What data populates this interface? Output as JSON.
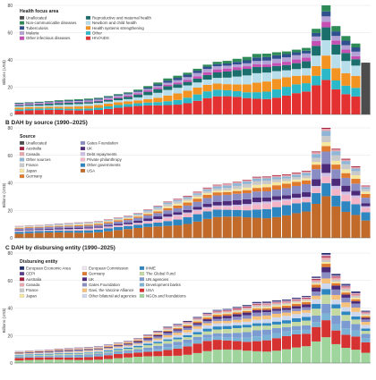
{
  "chart_data": [
    {
      "type": "bar",
      "stacked": true,
      "title": "",
      "legend_title": "Health focus area",
      "ylabel": "Billions (US$)",
      "ylim": [
        0,
        80
      ],
      "yticks": [
        0,
        20,
        40,
        60,
        80
      ],
      "series": [
        {
          "name": "Unallocated",
          "color": "#4d4d4d"
        },
        {
          "name": "Non-communicable diseases",
          "color": "#2e8b57"
        },
        {
          "name": "Tuberculosis",
          "color": "#2f4f8f"
        },
        {
          "name": "Malaria",
          "color": "#b3a2d6"
        },
        {
          "name": "Other infectious diseases",
          "color": "#c64fb4"
        },
        {
          "name": "Reproductive and maternal health",
          "color": "#1a6e6b"
        },
        {
          "name": "Newborn and child health",
          "color": "#b8ddeb"
        },
        {
          "name": "Health systems strengthening",
          "color": "#f39321"
        },
        {
          "name": "Other",
          "color": "#2bb9c9"
        },
        {
          "name": "HIV/AIDS",
          "color": "#e33030"
        }
      ],
      "totals": [
        8.6,
        9,
        9.3,
        9.8,
        10.4,
        10.8,
        11.2,
        11.6,
        12.2,
        13.5,
        14.9,
        16.2,
        18.2,
        20.8,
        23.4,
        26.4,
        28.4,
        30.6,
        33.5,
        36.5,
        38.6,
        39.3,
        40.8,
        42.2,
        44.4,
        44.6,
        45.6,
        46.2,
        47.5,
        48.8,
        62.8,
        80,
        64.8,
        57.5,
        52,
        38
      ]
    },
    {
      "type": "bar",
      "stacked": true,
      "title": "B  DAH by source (1990–2025)",
      "legend_title": "Source",
      "ylabel": "Billions (US$)",
      "ylim": [
        0,
        80
      ],
      "yticks": [
        0,
        20,
        40,
        60,
        80
      ],
      "series": [
        {
          "name": "Unallocated",
          "color": "#4d4d4d"
        },
        {
          "name": "Australia",
          "color": "#a61c3c"
        },
        {
          "name": "Canada",
          "color": "#e8a7ad"
        },
        {
          "name": "Other sources",
          "color": "#8fb6d6"
        },
        {
          "name": "France",
          "color": "#c9c9c9"
        },
        {
          "name": "Japan",
          "color": "#f5e6a0"
        },
        {
          "name": "Germany",
          "color": "#e07a2e"
        },
        {
          "name": "Gates Foundation",
          "color": "#8a8cc4"
        },
        {
          "name": "UK",
          "color": "#4c2a7a"
        },
        {
          "name": "Debt repayments",
          "color": "#cdbfe6"
        },
        {
          "name": "Private philanthropy",
          "color": "#f4b6c6"
        },
        {
          "name": "Other governments",
          "color": "#2e86c1"
        },
        {
          "name": "USA",
          "color": "#c16a2a"
        }
      ],
      "totals": [
        8.6,
        9,
        9.3,
        9.8,
        10.4,
        10.8,
        11.2,
        11.6,
        12.2,
        13.5,
        14.9,
        16.2,
        18.2,
        20.8,
        23.4,
        26.4,
        28.4,
        30.6,
        33.5,
        36.5,
        38.6,
        39.3,
        40.8,
        42.2,
        44.4,
        44.6,
        45.6,
        46.2,
        47.5,
        48.8,
        62.8,
        80,
        64.8,
        57.5,
        52,
        38
      ]
    },
    {
      "type": "bar",
      "stacked": true,
      "title": "C  DAH by disbursing entity (1990–2025)",
      "legend_title": "Disbursing entity",
      "ylabel": "Billions (US$)",
      "ylim": [
        0,
        80
      ],
      "yticks": [
        0,
        20,
        40,
        60,
        80
      ],
      "series": [
        {
          "name": "European Economic Area",
          "color": "#1f2d6b"
        },
        {
          "name": "CEPI",
          "color": "#5b3f8c"
        },
        {
          "name": "Australia",
          "color": "#a61c3c"
        },
        {
          "name": "Canada",
          "color": "#e8a7ad"
        },
        {
          "name": "France",
          "color": "#c9c9c9"
        },
        {
          "name": "Japan",
          "color": "#f5e6a0"
        },
        {
          "name": "European Commission",
          "color": "#efe6f2"
        },
        {
          "name": "Germany",
          "color": "#e07a2e"
        },
        {
          "name": "UK",
          "color": "#4c2a7a"
        },
        {
          "name": "Gates Foundation",
          "color": "#8a8cc4"
        },
        {
          "name": "Gavi, the Vaccine Alliance",
          "color": "#f6c17a"
        },
        {
          "name": "Other bilateral aid agencies",
          "color": "#cdd7ee"
        },
        {
          "name": "IHME",
          "color": "#2e86c1"
        },
        {
          "name": "The Global Fund",
          "color": "#c5d9a2"
        },
        {
          "name": "UN agencies",
          "color": "#7b9bd1"
        },
        {
          "name": "Development banks",
          "color": "#7bb3d6"
        },
        {
          "name": "USA",
          "color": "#d63232"
        },
        {
          "name": "NGOs and foundations",
          "color": "#9fd59c"
        }
      ],
      "totals": [
        8.6,
        9,
        9.3,
        9.8,
        10.4,
        10.8,
        11.2,
        11.6,
        12.2,
        13.5,
        14.9,
        16.2,
        18.2,
        20.8,
        23.4,
        26.4,
        28.4,
        30.6,
        33.5,
        36.5,
        38.6,
        39.3,
        40.8,
        42.2,
        44.4,
        44.6,
        45.6,
        46.2,
        47.5,
        48.8,
        62.8,
        80,
        64.8,
        57.5,
        52,
        38
      ]
    }
  ],
  "legend_text": {
    "panel_c_row_a": "Gavi, the Vaccine Alliance",
    "panel_c_row_a2": "and Immunization",
    "panel_c_row_b": "The Global Fund to Fight AIDS,",
    "panel_c_row_b2": "Tuberculosis and Malaria"
  }
}
